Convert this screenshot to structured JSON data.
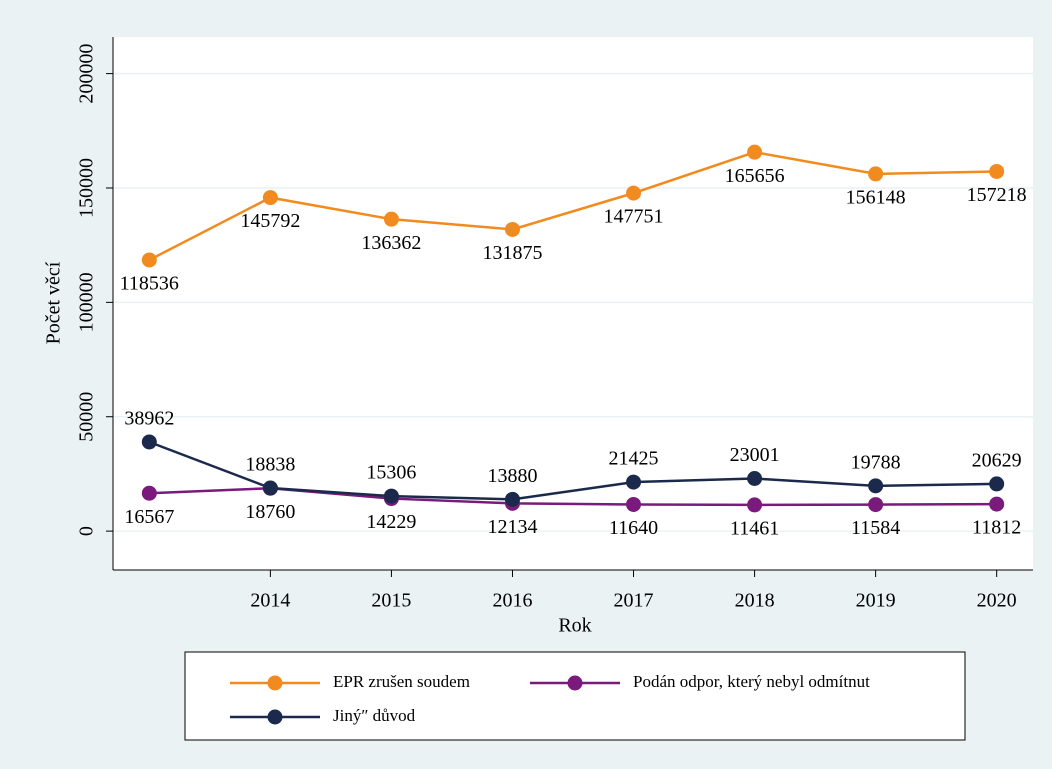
{
  "chart_data": {
    "type": "line",
    "x": [
      2013,
      2014,
      2015,
      2016,
      2017,
      2018,
      2019,
      2020
    ],
    "xlim": [
      2012.7,
      2020.3
    ],
    "xticks": [
      2014,
      2015,
      2016,
      2017,
      2018,
      2019,
      2020
    ],
    "ylim": [
      -17000,
      216000
    ],
    "yticks": [
      0,
      50000,
      100000,
      150000,
      200000
    ],
    "xlabel": "Rok",
    "ylabel": "Počet věcí",
    "grid": true,
    "series": [
      {
        "name": "EPR zrušen soudem",
        "color": "#f28b1f",
        "values": [
          118536,
          145792,
          136362,
          131875,
          147751,
          165656,
          156148,
          157218
        ]
      },
      {
        "name": "Podán odpor, který nebyl odmítnut",
        "color": "#7a1a7c",
        "values": [
          16567,
          18760,
          14229,
          12134,
          11640,
          11461,
          11584,
          11812
        ]
      },
      {
        "name": "Jiný″ důvod",
        "color": "#1b2a4c",
        "values": [
          38962,
          18838,
          15306,
          13880,
          21425,
          23001,
          19788,
          20629
        ]
      }
    ]
  }
}
